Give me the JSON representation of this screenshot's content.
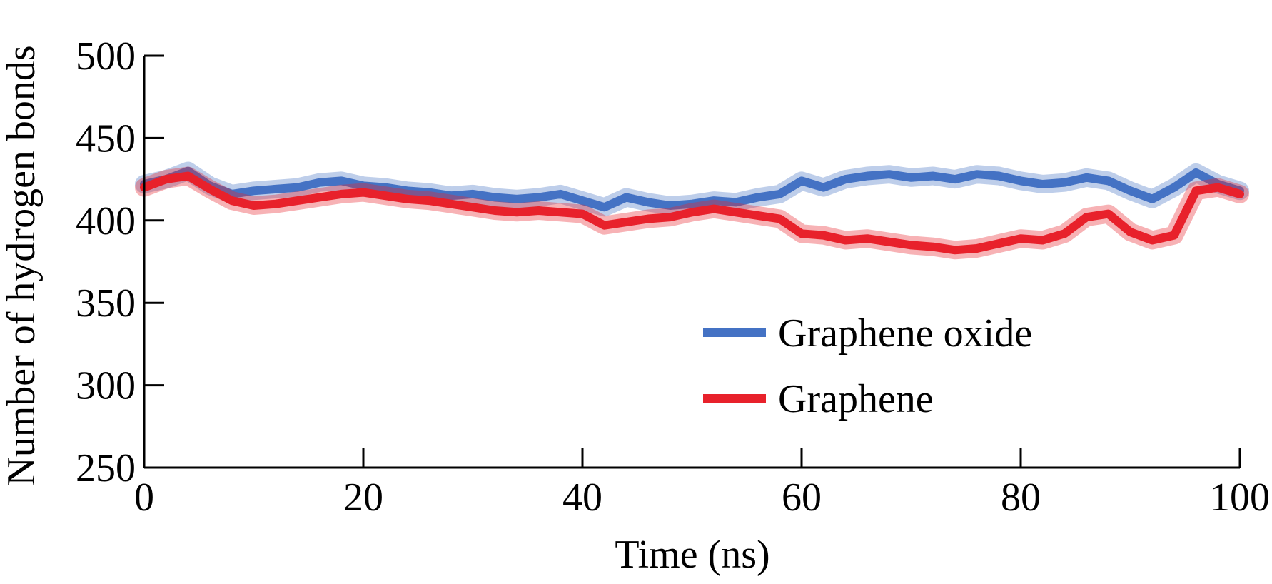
{
  "chart_data": {
    "type": "line",
    "title": "",
    "xlabel": "Time (ns)",
    "ylabel": "Number of hydrogen bonds",
    "xlim": [
      0,
      100
    ],
    "ylim": [
      250,
      500
    ],
    "xticks": [
      0,
      20,
      40,
      60,
      80,
      100
    ],
    "xtick_labels": [
      "0",
      "20",
      "40",
      "60",
      "80",
      "100"
    ],
    "yticks": [
      250,
      300,
      350,
      400,
      450,
      500
    ],
    "ytick_labels": [
      "250",
      "300",
      "350",
      "400",
      "450",
      "500"
    ],
    "grid": false,
    "legend_position": "bottom-right",
    "series": [
      {
        "name": "Graphene oxide",
        "color": "#4472c4",
        "x": [
          0,
          2,
          4,
          6,
          8,
          10,
          12,
          14,
          16,
          18,
          20,
          22,
          24,
          26,
          28,
          30,
          32,
          34,
          36,
          38,
          40,
          42,
          44,
          46,
          48,
          50,
          52,
          54,
          56,
          58,
          60,
          62,
          64,
          66,
          68,
          70,
          72,
          74,
          76,
          78,
          80,
          82,
          84,
          86,
          88,
          90,
          92,
          94,
          96,
          98,
          100
        ],
        "y": [
          422,
          425,
          430,
          421,
          416,
          418,
          419,
          420,
          423,
          424,
          421,
          420,
          418,
          417,
          415,
          416,
          414,
          413,
          414,
          416,
          412,
          408,
          414,
          411,
          409,
          410,
          412,
          411,
          414,
          416,
          424,
          420,
          425,
          427,
          428,
          426,
          427,
          425,
          428,
          427,
          424,
          422,
          423,
          426,
          424,
          418,
          413,
          420,
          429,
          422,
          418
        ]
      },
      {
        "name": "Graphene",
        "color": "#e8212b",
        "x": [
          0,
          2,
          4,
          6,
          8,
          10,
          12,
          14,
          16,
          18,
          20,
          22,
          24,
          26,
          28,
          30,
          32,
          34,
          36,
          38,
          40,
          42,
          44,
          46,
          48,
          50,
          52,
          54,
          56,
          58,
          60,
          62,
          64,
          66,
          68,
          70,
          72,
          74,
          76,
          78,
          80,
          82,
          84,
          86,
          88,
          90,
          92,
          94,
          96,
          98,
          100
        ],
        "y": [
          420,
          425,
          427,
          419,
          412,
          409,
          410,
          412,
          414,
          416,
          417,
          415,
          413,
          412,
          410,
          408,
          406,
          405,
          406,
          405,
          404,
          397,
          399,
          401,
          402,
          405,
          407,
          405,
          403,
          401,
          392,
          391,
          388,
          389,
          387,
          385,
          384,
          382,
          383,
          386,
          389,
          388,
          392,
          402,
          404,
          393,
          388,
          391,
          418,
          420,
          416
        ]
      }
    ]
  }
}
